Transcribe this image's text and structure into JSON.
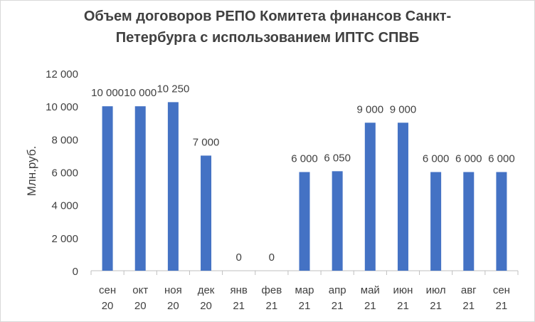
{
  "chart_data": {
    "type": "bar",
    "title_lines": [
      "Объем договоров  РЕПО Комитета финансов Санкт-",
      "Петербурга с использованием ИПТС СПВБ"
    ],
    "ylabel": "Млн.руб.",
    "xlabel": "",
    "categories": [
      [
        "сен",
        "20"
      ],
      [
        "окт",
        "20"
      ],
      [
        "ноя",
        "20"
      ],
      [
        "дек",
        "20"
      ],
      [
        "янв",
        "21"
      ],
      [
        "фев",
        "21"
      ],
      [
        "мар",
        "21"
      ],
      [
        "апр",
        "21"
      ],
      [
        "май",
        "21"
      ],
      [
        "июн",
        "21"
      ],
      [
        "июл",
        "21"
      ],
      [
        "авг",
        "21"
      ],
      [
        "сен",
        "21"
      ]
    ],
    "values": [
      10000,
      10000,
      10250,
      7000,
      0,
      0,
      6000,
      6050,
      9000,
      9000,
      6000,
      6000,
      6000
    ],
    "data_labels": [
      "10 000",
      "10 000",
      "10 250",
      "7 000",
      "0",
      "0",
      "6 000",
      "6 050",
      "9 000",
      "9 000",
      "6 000",
      "6 000",
      "6 000"
    ],
    "ylim": [
      0,
      12000
    ],
    "yticks": [
      0,
      2000,
      4000,
      6000,
      8000,
      10000,
      12000
    ],
    "ytick_labels": [
      "0",
      "2 000",
      "4 000",
      "6 000",
      "8 000",
      "10 000",
      "12 000"
    ],
    "grid": false,
    "legend": "none",
    "colors": {
      "bar": "#4472C4",
      "text": "#404040",
      "axis": "#bfbfbf"
    }
  }
}
